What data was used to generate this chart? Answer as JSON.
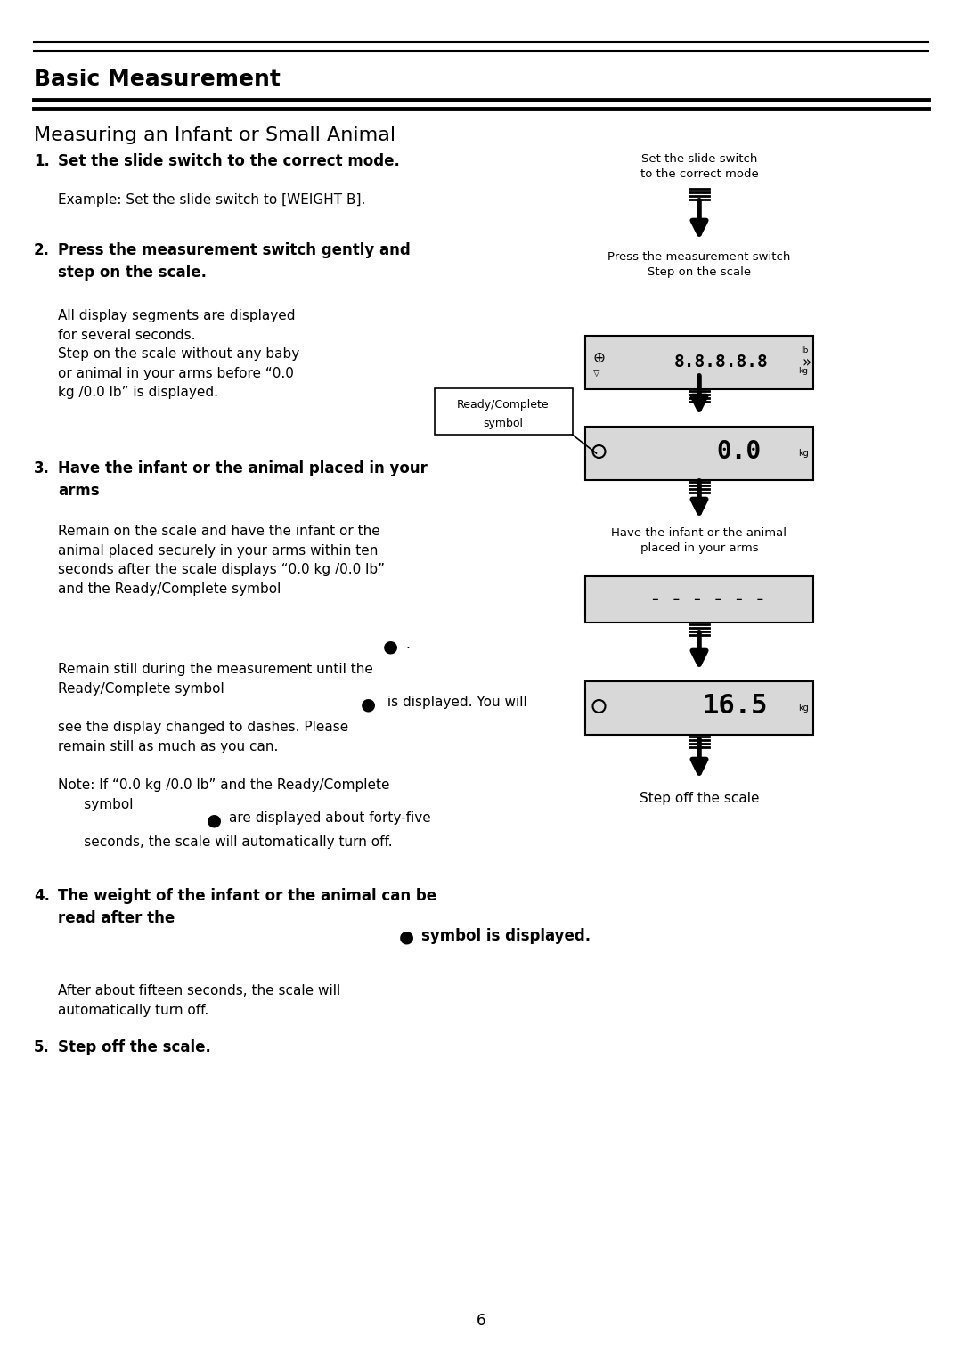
{
  "bg_color": "#ffffff",
  "title_section": "Basic Measurement",
  "subtitle": "Measuring an Infant or Small Animal",
  "steps": [
    {
      "num": "1.",
      "bold": "Set the slide switch to the correct mode.",
      "normal": "Example: Set the slide switch to [WEIGHT B]."
    },
    {
      "num": "2.",
      "bold": "Press the measurement switch gently and\nstep on the scale.",
      "normal": "All display segments are displayed\nfor several seconds.\nStep on the scale without any baby\nor animal in your arms before “0.0\nkg /0.0 lb” is displayed."
    },
    {
      "num": "3.",
      "bold": "Have the infant or the animal placed in your\narms",
      "normal": "Remain on the scale and have the infant or the\nanimal placed securely in your arms within ten\nseconds after the scale displays “0.0 kg /0.0 lb”\nand the Ready/Complete symbol ●.\nRemain still during the measurement until the\nReady/Complete symbol ● is displayed. You will\nsee the display changed to dashes. Please\nremain still as much as you can.\nNote: If “0.0 kg /0.0 lb” and the Ready/Complete\n    symbol ● are displayed about forty-five\n    seconds, the scale will automatically turn off."
    },
    {
      "num": "4.",
      "bold": "The weight of the infant or the animal can be\nread after the ● symbol is displayed.",
      "normal": "After about fifteen seconds, the scale will\nautomatically turn off."
    },
    {
      "num": "5.",
      "bold": "Step off the scale.",
      "normal": ""
    }
  ],
  "right_labels": [
    "Set the slide switch\nto the correct mode",
    "Press the measurement switch\nStep on the scale",
    "Have the infant or the animal\nplaced in your arms",
    "Step off the scale"
  ],
  "page_number": "6"
}
